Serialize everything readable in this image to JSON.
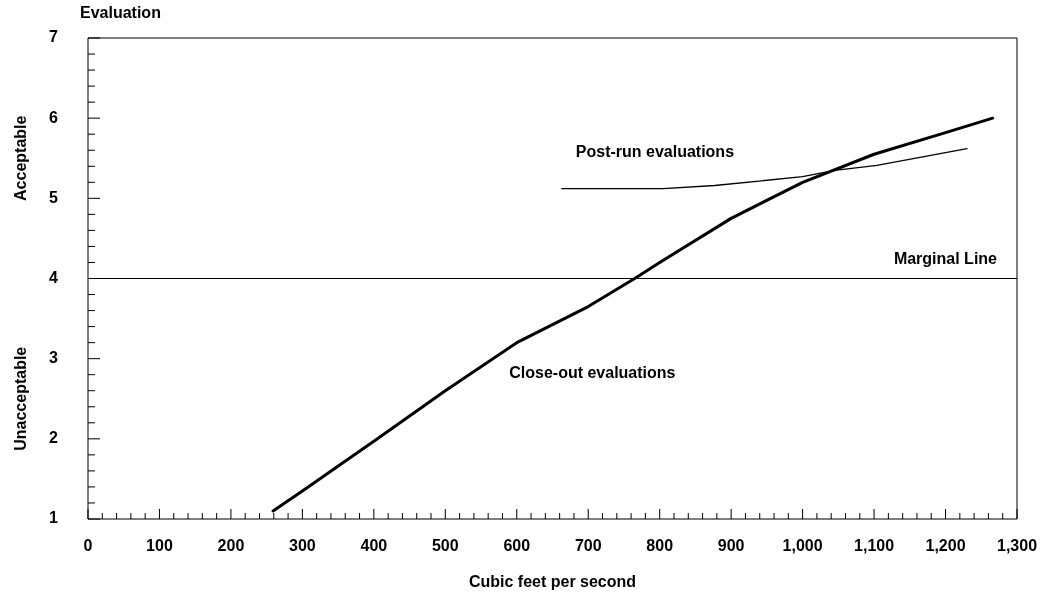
{
  "chart_data": {
    "type": "line",
    "ylabel": "Evaluation",
    "xlabel": "Cubic feet per second",
    "marker": "none",
    "grid": false,
    "legend": false,
    "xlim": [
      0,
      1300
    ],
    "ylim": [
      1,
      7
    ],
    "xticks": [
      0,
      100,
      200,
      300,
      400,
      500,
      600,
      700,
      800,
      900,
      {
        "value": 1000,
        "label": "1,000"
      },
      {
        "value": 1100,
        "label": "1,100"
      },
      {
        "value": 1200,
        "label": "1,200"
      },
      {
        "value": 1300,
        "label": "1,300"
      }
    ],
    "yticks": [
      1,
      2,
      3,
      4,
      5,
      6,
      7
    ],
    "series": [
      {
        "name": "Post-run evaluations",
        "color": "#000000",
        "x": [
          663,
          805,
          877,
          1000,
          1045,
          1104,
          1230
        ],
        "values": [
          5.12,
          5.12,
          5.16,
          5.27,
          5.35,
          5.41,
          5.62
        ]
      },
      {
        "name": "Close-out evaluations",
        "color": "#000000",
        "x": [
          259,
          300,
          400,
          500,
          600,
          700,
          765,
          800,
          900,
          1000,
          1100,
          1200,
          1266
        ],
        "values": [
          1.1,
          1.35,
          1.97,
          2.6,
          3.2,
          3.65,
          4.0,
          4.2,
          4.75,
          5.2,
          5.55,
          5.82,
          6.0
        ]
      }
    ],
    "ref_lines": [
      {
        "axis": "y",
        "value": 4,
        "label": "Marginal Line",
        "color": "#000000"
      }
    ],
    "annotations": [
      "Acceptable",
      "Unacceptable"
    ]
  }
}
